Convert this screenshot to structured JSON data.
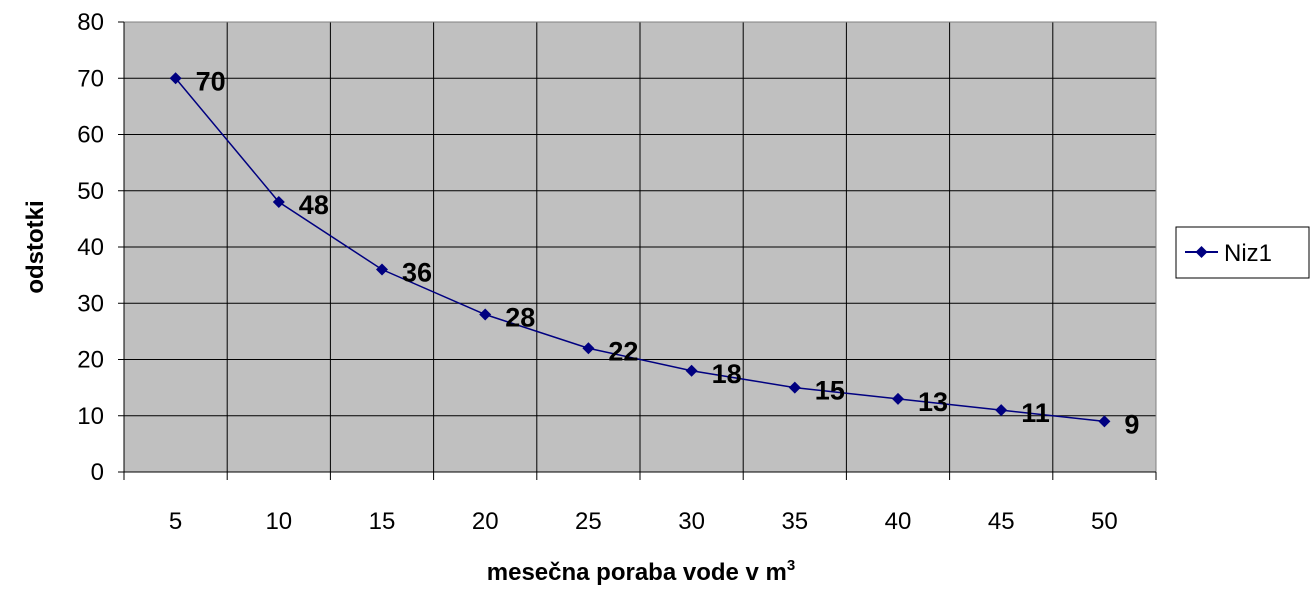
{
  "chart_data": {
    "type": "line",
    "categories": [
      "5",
      "10",
      "15",
      "20",
      "25",
      "30",
      "35",
      "40",
      "45",
      "50"
    ],
    "series": [
      {
        "name": "Niz1",
        "values": [
          70,
          48,
          36,
          28,
          22,
          18,
          15,
          13,
          11,
          9
        ],
        "data_labels": [
          "70",
          "48",
          "36",
          "28",
          "22",
          "18",
          "15",
          "13",
          "11",
          "9"
        ],
        "color": "#000080",
        "marker": "diamond"
      }
    ],
    "xlabel": "mesečna poraba vode v m",
    "xlabel_sup": "3",
    "ylabel": "odstotki",
    "ylim": [
      0,
      80
    ],
    "yticks": [
      "0",
      "10",
      "20",
      "30",
      "40",
      "50",
      "60",
      "70",
      "80"
    ],
    "grid": true,
    "plot_background": "#c0c0c0",
    "legend_position": "right"
  }
}
